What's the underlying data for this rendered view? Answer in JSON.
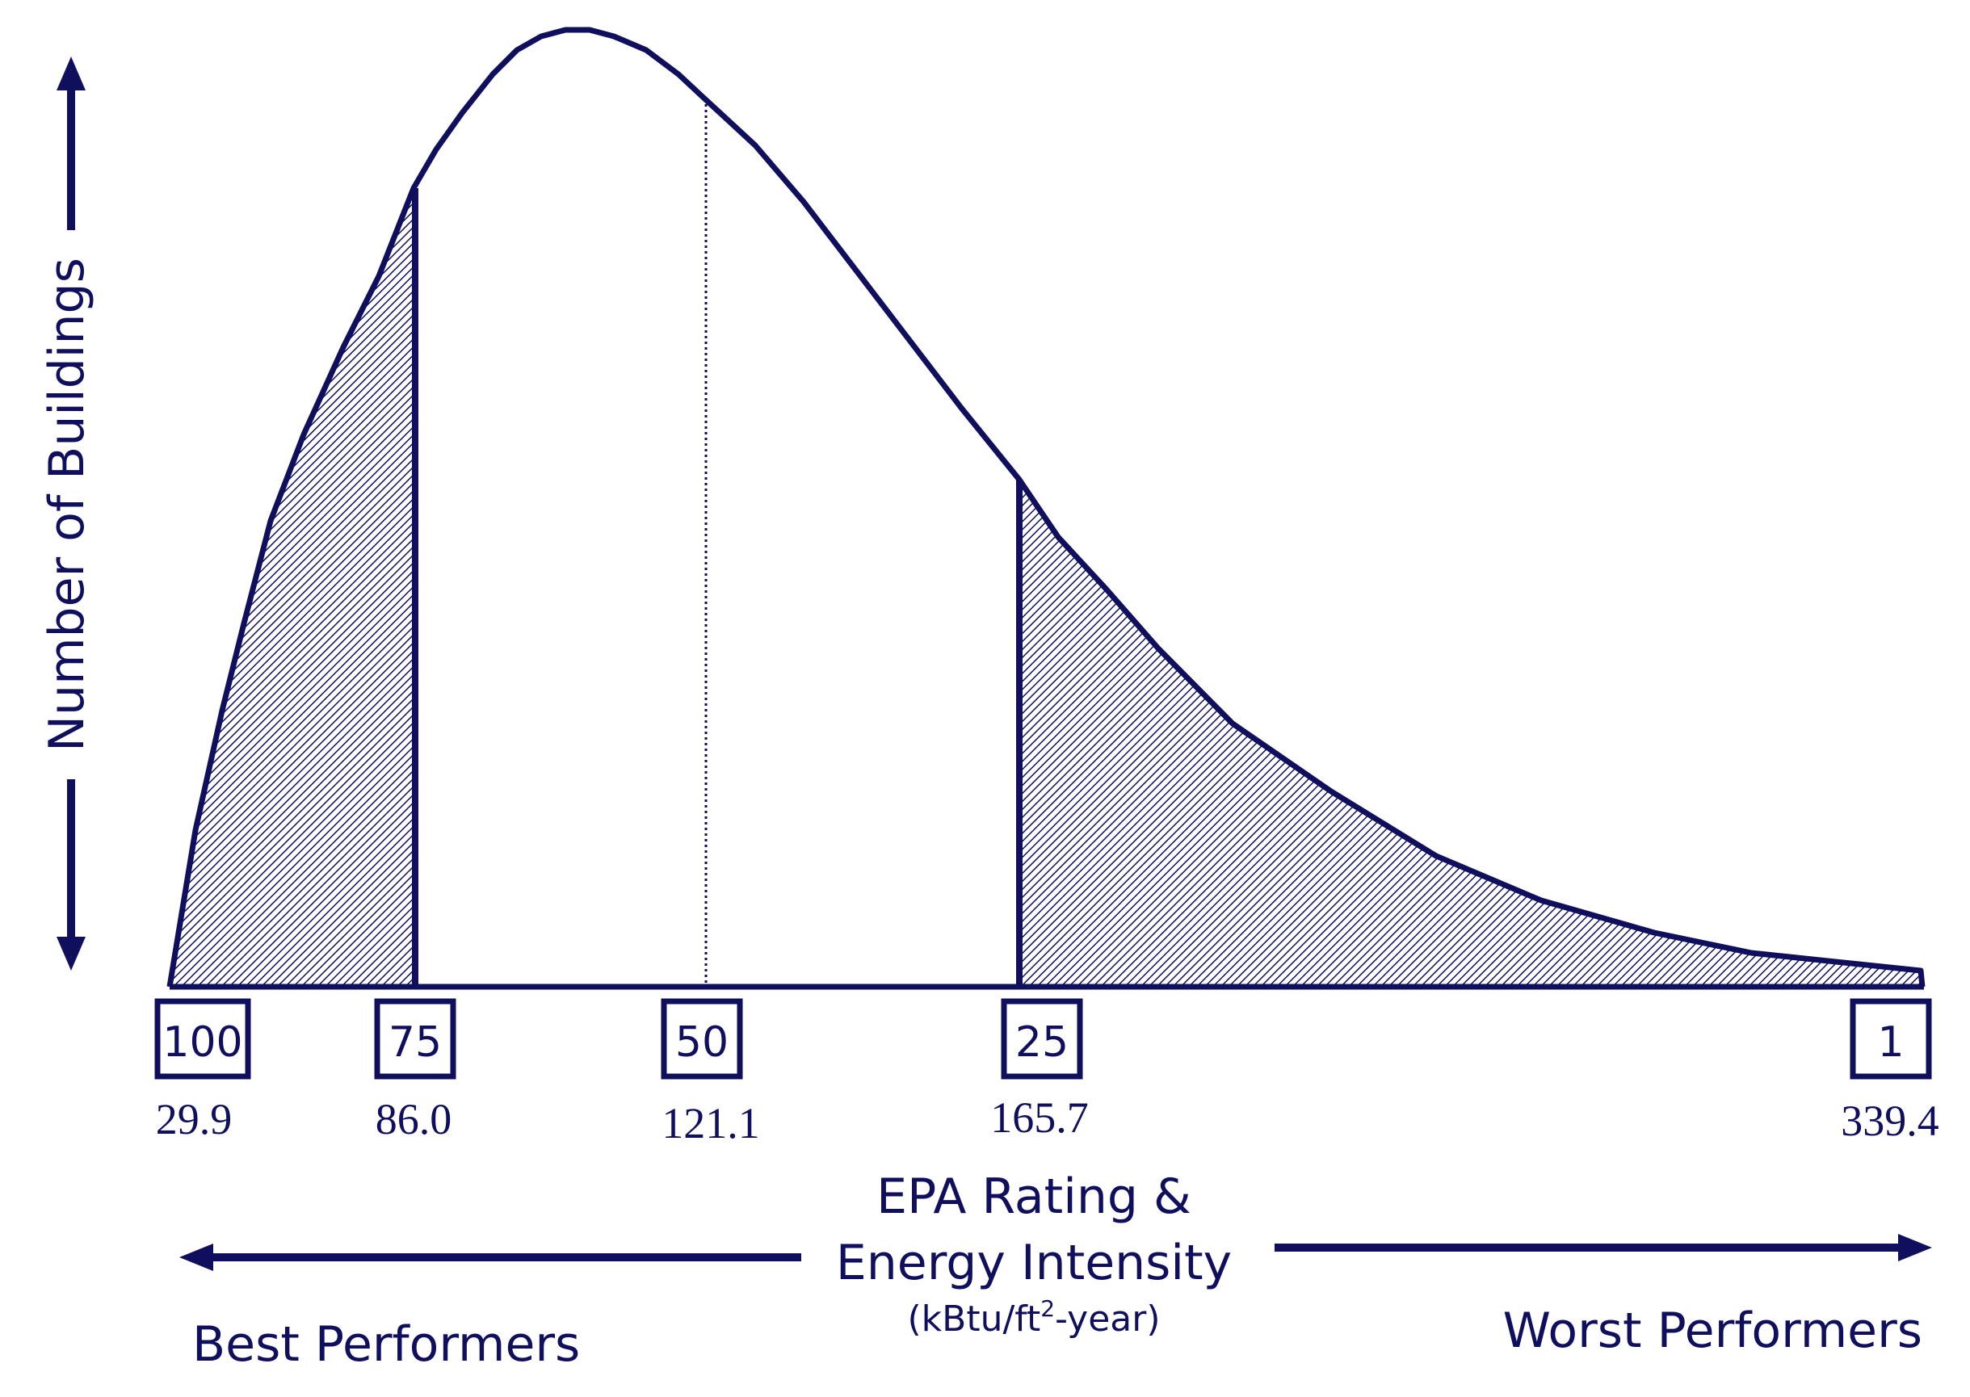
{
  "colors": {
    "ink": "#0f0f5e",
    "background": "#ffffff"
  },
  "axes": {
    "y_label": "Number of Buildings",
    "x_label_line1": "EPA Rating &",
    "x_label_line2": "Energy Intensity",
    "x_unit_prefix": "(kBtu/ft",
    "x_unit_sup": "2",
    "x_unit_suffix": "-year)"
  },
  "direction_labels": {
    "left": "Best Performers",
    "right": "Worst Performers"
  },
  "markers": [
    {
      "rating": "100",
      "intensity": "29.9"
    },
    {
      "rating": "75",
      "intensity": "86.0"
    },
    {
      "rating": "50",
      "intensity": "121.1"
    },
    {
      "rating": "25",
      "intensity": "165.7"
    },
    {
      "rating": "1",
      "intensity": "339.4"
    }
  ],
  "icons": {
    "y_arrow_up": "arrow-up-icon",
    "y_arrow_down": "arrow-down-icon",
    "left_arrow": "arrow-left-icon",
    "right_arrow": "arrow-right-icon"
  }
}
